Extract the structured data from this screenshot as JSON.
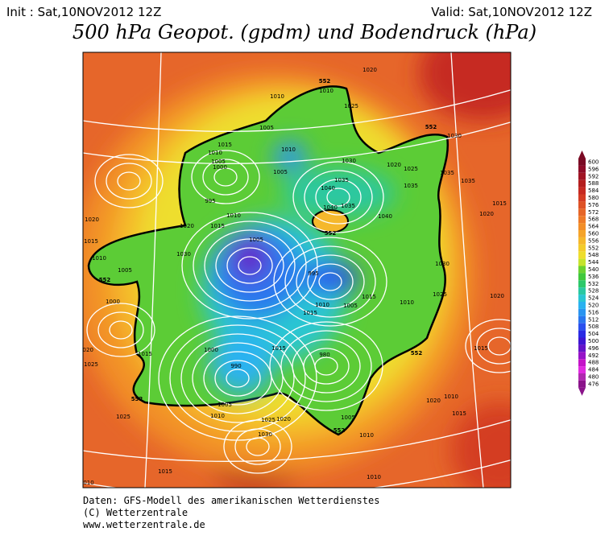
{
  "header": {
    "init": "Init : Sat,10NOV2012 12Z",
    "valid": "Valid: Sat,10NOV2012 12Z",
    "title": "500 hPa Geopot. (gpdm) und Bodendruck (hPa)"
  },
  "map": {
    "isobar_labels": [
      "1020",
      "1010",
      "1025",
      "1010",
      "1005",
      "1010",
      "1005",
      "1015",
      "1010",
      "1005",
      "1000",
      "1030",
      "1020",
      "1025",
      "1035",
      "1040",
      "1035",
      "1035",
      "1030",
      "1035",
      "1015",
      "1020",
      "1040",
      "1035",
      "1040",
      "995",
      "1010",
      "1020",
      "1015",
      "1020",
      "1015",
      "1010",
      "1005",
      "1030",
      "1005",
      "995",
      "1010",
      "1005",
      "1015",
      "1015",
      "1010",
      "1030",
      "1025",
      "1020",
      "1020",
      "1025",
      "1000",
      "1015",
      "1000",
      "990",
      "1015",
      "980",
      "1020",
      "1025",
      "1010",
      "1005",
      "1025",
      "1030",
      "1015",
      "1005",
      "1010",
      "1020",
      "1010",
      "1015",
      "1015",
      "1010",
      "010"
    ],
    "contour_labels": [
      "552",
      "552",
      "552",
      "552",
      "552",
      "552",
      "552"
    ]
  },
  "colorbar": {
    "levels": [
      600,
      596,
      592,
      588,
      584,
      580,
      576,
      572,
      568,
      564,
      560,
      556,
      552,
      548,
      544,
      540,
      536,
      532,
      528,
      524,
      520,
      516,
      512,
      508,
      504,
      500,
      496,
      492,
      488,
      484,
      480,
      476
    ],
    "colors": [
      "#7a0a24",
      "#8e0c28",
      "#a01424",
      "#b41e1e",
      "#c62a22",
      "#d43c24",
      "#de5226",
      "#e66628",
      "#ee7a28",
      "#f28e28",
      "#f5a42a",
      "#f5b82c",
      "#f3cc2c",
      "#eede2e",
      "#c6e42e",
      "#6cd232",
      "#40c83c",
      "#2cc86a",
      "#2ac8a2",
      "#2ac6d2",
      "#2ab2f0",
      "#2a94f0",
      "#2a76ee",
      "#2a50ee",
      "#2a2ae4",
      "#3e16d2",
      "#6414c8",
      "#9614c8",
      "#c414c8",
      "#e02ae0",
      "#b028b0",
      "#8a148a"
    ]
  },
  "footer": {
    "lines": [
      "Daten: GFS-Modell des amerikanischen Wetterdienstes",
      "(C) Wetterzentrale",
      "www.wetterzentrale.de"
    ]
  }
}
